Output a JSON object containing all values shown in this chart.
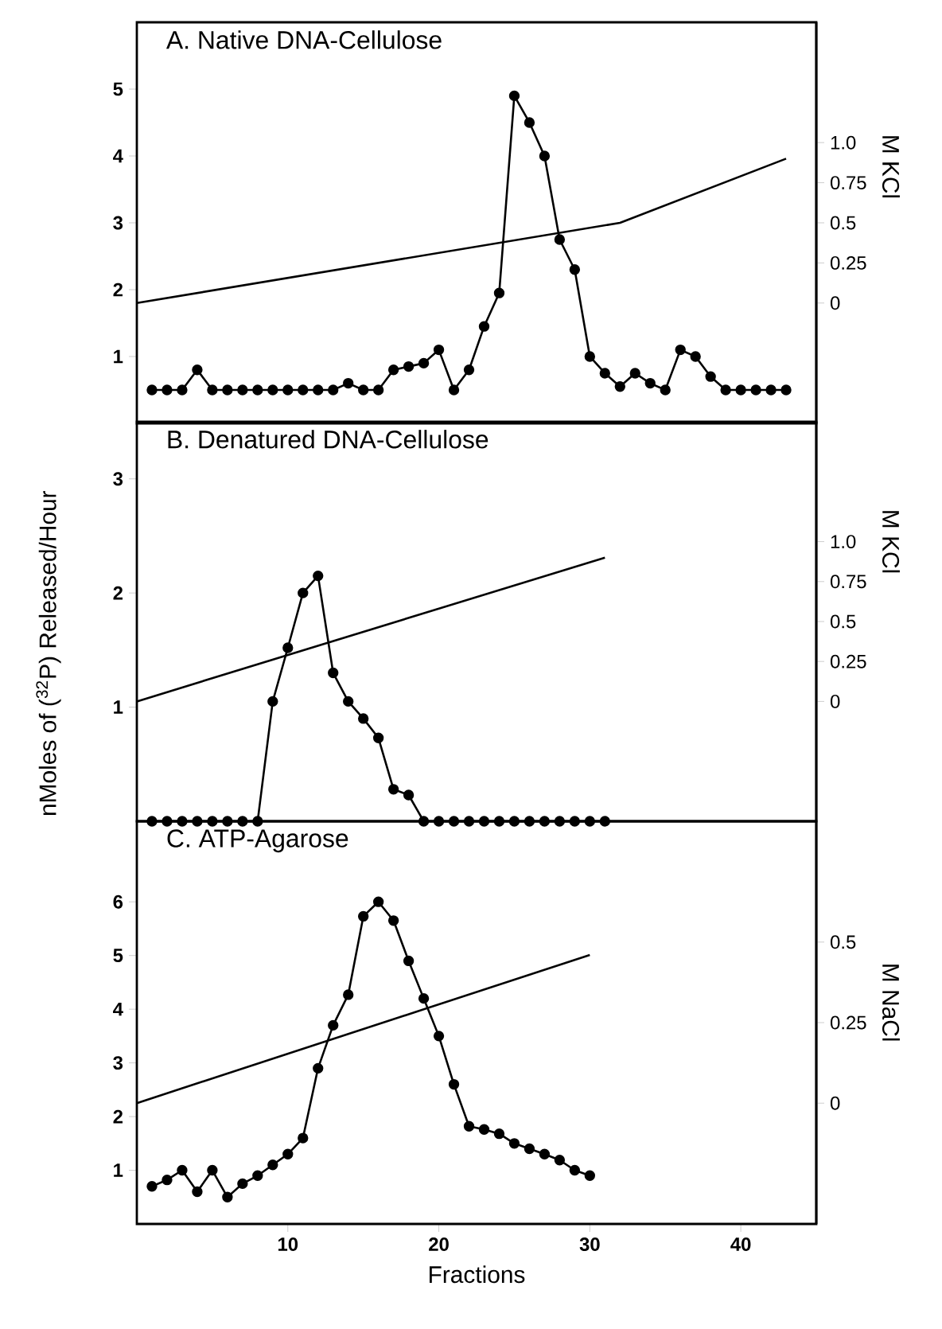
{
  "chart_data": [
    {
      "type": "line",
      "title": "A. Native DNA-Cellulose",
      "y2label": "M KCl",
      "tick_labels": "y",
      "xlim": [
        0,
        45
      ],
      "ylim": [
        0,
        6
      ],
      "yticks": [
        1,
        2,
        3,
        4,
        5
      ],
      "y2lim": [
        -0.75,
        1.75
      ],
      "y2ticks": [
        0,
        0.25,
        0.5,
        0.75,
        {
          "value": 1.0,
          "label": "1.0"
        }
      ],
      "series": [
        {
          "color": "#000000",
          "marker": "circle",
          "x": [
            1,
            2,
            3,
            4,
            5,
            6,
            7,
            8,
            9,
            10,
            11,
            12,
            13,
            14,
            15,
            16,
            17,
            18,
            19,
            20,
            21,
            22,
            23,
            24,
            25,
            26,
            27,
            28,
            29,
            30,
            31,
            32,
            33,
            34,
            35,
            36,
            37,
            38,
            39,
            40,
            41,
            42,
            43
          ],
          "values": [
            0.5,
            0.5,
            0.5,
            0.8,
            0.5,
            0.5,
            0.5,
            0.5,
            0.5,
            0.5,
            0.5,
            0.5,
            0.5,
            0.6,
            0.5,
            0.5,
            0.8,
            0.85,
            0.9,
            1.1,
            0.5,
            0.8,
            1.45,
            1.95,
            4.9,
            4.5,
            4.0,
            2.75,
            2.3,
            1.0,
            0.75,
            0.55,
            0.75,
            0.6,
            0.5,
            1.1,
            1.0,
            0.7,
            0.5,
            0.5,
            0.5,
            0.5,
            0.5
          ]
        },
        {
          "color": "#000000",
          "marker": "none",
          "axis": "y2",
          "x": [
            0,
            32,
            43
          ],
          "values": [
            0,
            0.5,
            0.9
          ]
        }
      ]
    },
    {
      "type": "line",
      "title": "B. Denatured DNA-Cellulose",
      "ylabel": "nMoles of ($^{32}$P) Released/Hour",
      "y2label": "M KCl",
      "tick_labels": "y",
      "xlim": [
        0,
        45
      ],
      "ylim": [
        0,
        3.5
      ],
      "yticks": [
        1,
        2,
        3
      ],
      "y2lim": [
        -0.75,
        1.75
      ],
      "y2ticks": [
        0,
        0.25,
        0.5,
        0.75,
        {
          "value": 1.0,
          "label": "1.0"
        }
      ],
      "series": [
        {
          "color": "#000000",
          "marker": "circle",
          "x": [
            1,
            2,
            3,
            4,
            5,
            6,
            7,
            8,
            9,
            10,
            11,
            12,
            13,
            14,
            15,
            16,
            17,
            18,
            19,
            20,
            21,
            22,
            23,
            24,
            25,
            26,
            27,
            28,
            29,
            30,
            31
          ],
          "values": [
            0,
            0,
            0,
            0,
            0,
            0,
            0,
            0,
            1.05,
            1.52,
            2.0,
            2.15,
            1.3,
            1.05,
            0.9,
            0.73,
            0.28,
            0.23,
            0,
            0,
            0,
            0,
            0,
            0,
            0,
            0,
            0,
            0,
            0,
            0,
            0
          ]
        },
        {
          "color": "#000000",
          "marker": "none",
          "axis": "y2",
          "x": [
            0,
            31
          ],
          "values": [
            0,
            0.9
          ]
        }
      ]
    },
    {
      "type": "line",
      "title": "C. ATP-Agarose",
      "xlabel": "Fractions",
      "y2label": "M NaCl",
      "xlim": [
        0,
        45
      ],
      "xticks": [
        10,
        20,
        30,
        40
      ],
      "ylim": [
        0,
        7.5
      ],
      "yticks": [
        1,
        2,
        3,
        4,
        5,
        6
      ],
      "y2lim": [
        -0.375,
        0.875
      ],
      "y2ticks": [
        0,
        0.25,
        0.5
      ],
      "series": [
        {
          "color": "#000000",
          "marker": "circle",
          "x": [
            1,
            2,
            3,
            4,
            5,
            6,
            7,
            8,
            9,
            10,
            11,
            12,
            13,
            14,
            15,
            16,
            17,
            18,
            19,
            20,
            21,
            22,
            23,
            24,
            25,
            26,
            27,
            28,
            29,
            30
          ],
          "values": [
            0.7,
            0.82,
            1.0,
            0.6,
            1.0,
            0.5,
            0.75,
            0.9,
            1.1,
            1.3,
            1.6,
            2.9,
            3.7,
            4.27,
            5.73,
            6.0,
            5.65,
            4.9,
            4.2,
            3.5,
            2.6,
            1.82,
            1.76,
            1.68,
            1.5,
            1.4,
            1.3,
            1.19,
            1.0,
            0.9
          ]
        },
        {
          "color": "#000000",
          "marker": "none",
          "axis": "y2",
          "x": [
            0,
            30
          ],
          "values": [
            0,
            0.46
          ]
        }
      ]
    }
  ]
}
